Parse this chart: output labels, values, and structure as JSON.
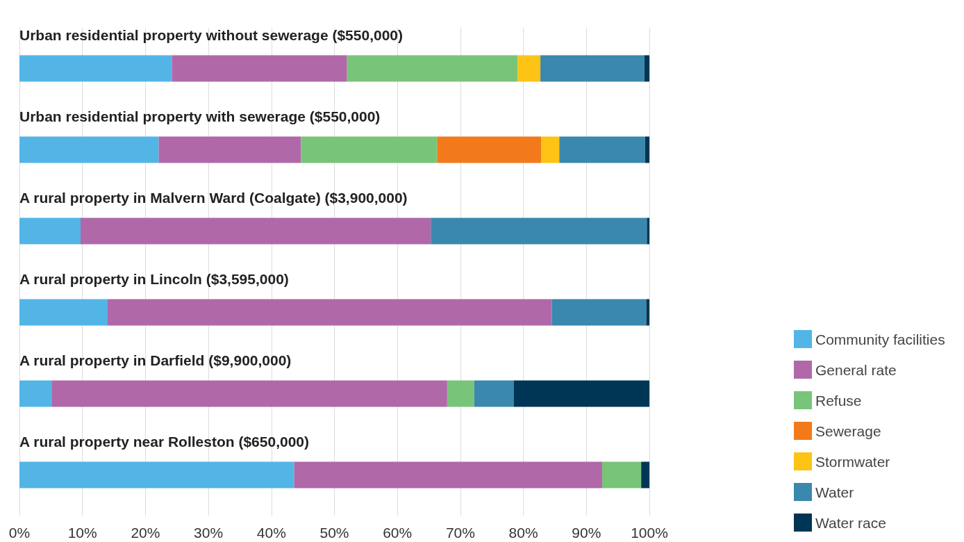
{
  "chart_data": {
    "type": "bar",
    "orientation": "horizontal",
    "stacked": true,
    "categories": [
      "Urban residential property without sewerage ($550,000)",
      "Urban residential property with sewerage ($550,000)",
      "A rural property in Malvern Ward (Coalgate) ($3,900,000)",
      "A rural property in Lincoln ($3,595,000)",
      "A rural property in Darfield ($9,900,000)",
      "A rural property near Rolleston ($650,000)"
    ],
    "series": [
      {
        "name": "Community facilities",
        "color": "#52b5e6",
        "values": [
          24.2,
          22.1,
          9.7,
          14.0,
          5.1,
          43.6
        ]
      },
      {
        "name": "General rate",
        "color": "#b068a8",
        "values": [
          27.8,
          22.6,
          55.6,
          70.5,
          62.8,
          48.9
        ]
      },
      {
        "name": "Refuse",
        "color": "#78c479",
        "values": [
          27.1,
          21.6,
          null,
          null,
          4.3,
          6.2
        ]
      },
      {
        "name": "Sewerage",
        "color": "#f27a1a",
        "values": [
          null,
          16.5,
          null,
          null,
          null,
          null
        ]
      },
      {
        "name": "Stormwater",
        "color": "#fdc315",
        "values": [
          3.6,
          2.9,
          null,
          null,
          null,
          null
        ]
      },
      {
        "name": "Water",
        "color": "#3a88ad",
        "values": [
          16.5,
          13.6,
          34.3,
          15.0,
          6.3,
          null
        ]
      },
      {
        "name": "Water race",
        "color": "#003655",
        "values": [
          0.8,
          0.7,
          0.4,
          0.5,
          21.5,
          1.3
        ]
      }
    ],
    "xlim": [
      0,
      100
    ],
    "xticks": [
      {
        "value": 0,
        "label": "0%"
      },
      {
        "value": 10,
        "label": "10%"
      },
      {
        "value": 20,
        "label": "20%"
      },
      {
        "value": 30,
        "label": "30%"
      },
      {
        "value": 40,
        "label": "40%"
      },
      {
        "value": 50,
        "label": "50%"
      },
      {
        "value": 60,
        "label": "60%"
      },
      {
        "value": 70,
        "label": "70%"
      },
      {
        "value": 80,
        "label": "80%"
      },
      {
        "value": 90,
        "label": "90%"
      },
      {
        "value": 100,
        "label": "100%"
      }
    ],
    "grid": "x",
    "legend": "right"
  }
}
